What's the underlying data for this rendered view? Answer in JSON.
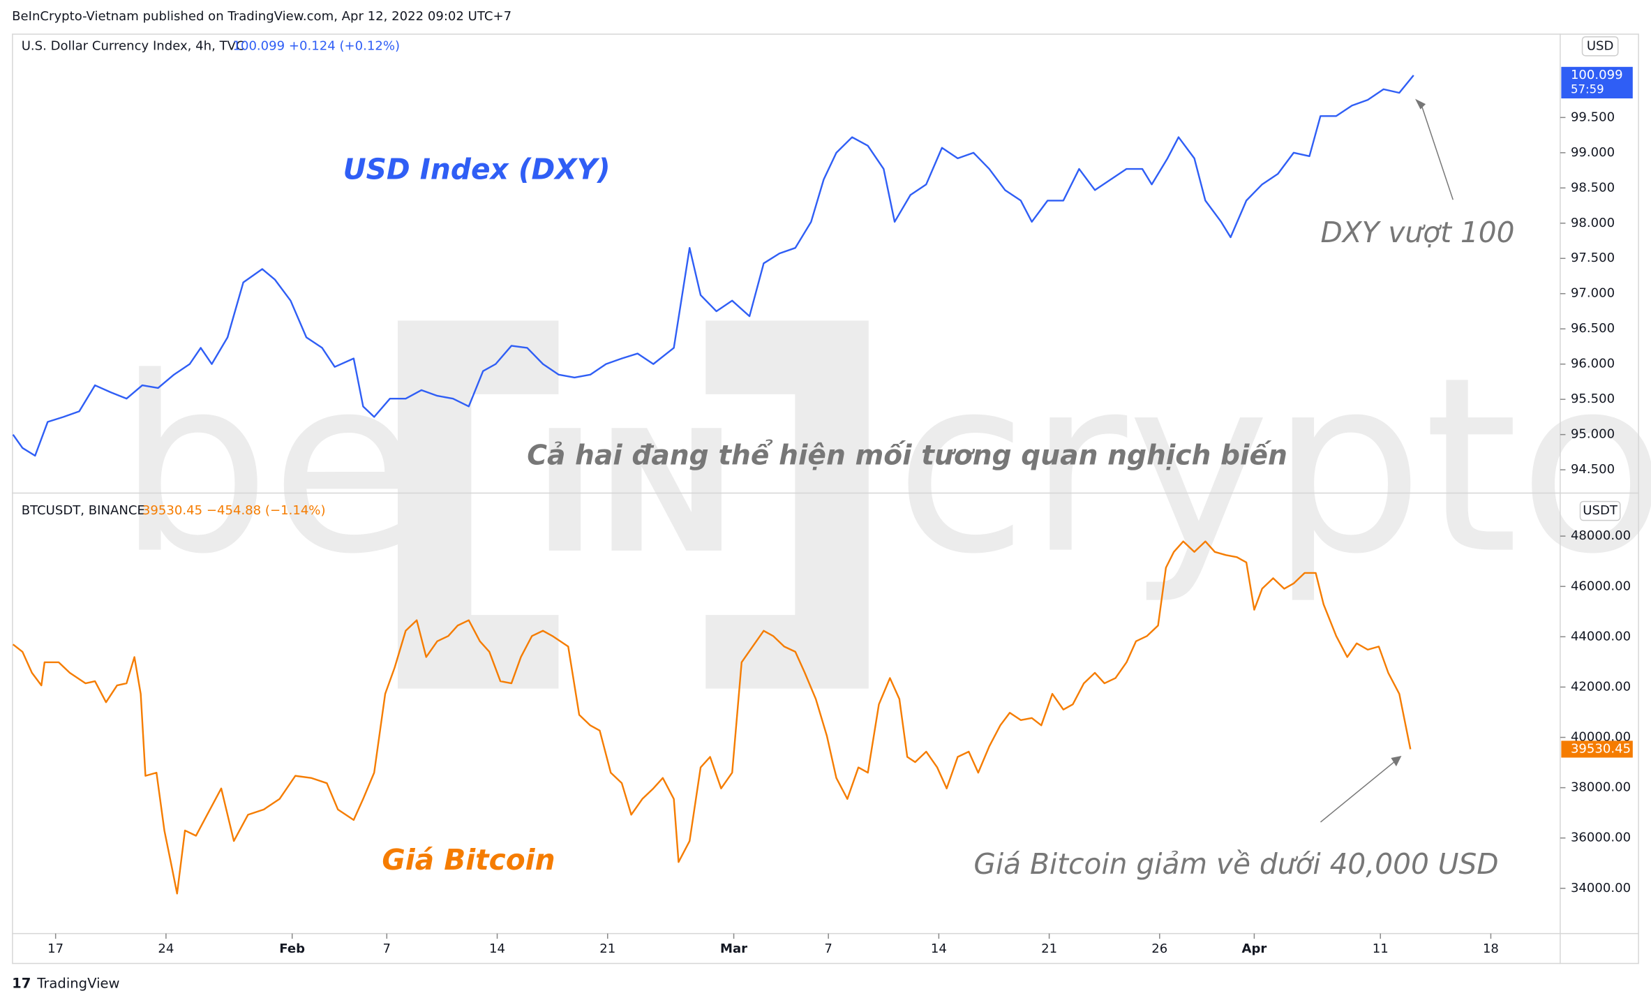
{
  "header": "BeInCrypto-Vietnam published on TradingView.com, Apr 12, 2022 09:02 UTC+7",
  "watermark": [
    "be",
    "IN",
    "crypto"
  ],
  "footer": "TradingView",
  "chart_data": [
    {
      "type": "line",
      "quote": "100.099  +0.124 (+0.12%)",
      "unit": "USD",
      "countdown": "57:59",
      "annotations": [
        "USD Index (DXY)",
        "DXY vượt 100",
        "Cả hai đang thể hiện mối tương quan nghịch biến"
      ],
      "xlim": [
        -2.7,
        95.4
      ],
      "ylim": [
        94.17,
        100.69
      ],
      "yticks": [
        {
          "value": 94.5,
          "label": "94.500"
        },
        {
          "value": 95,
          "label": "95.000"
        },
        {
          "value": 95.5,
          "label": "95.500"
        },
        {
          "value": 96,
          "label": "96.000"
        },
        {
          "value": 96.5,
          "label": "96.500"
        },
        {
          "value": 97,
          "label": "97.000"
        },
        {
          "value": 97.5,
          "label": "97.500"
        },
        {
          "value": 98,
          "label": "98.000"
        },
        {
          "value": 98.5,
          "label": "98.500"
        },
        {
          "value": 99,
          "label": "99.000"
        },
        {
          "value": 99.5,
          "label": "99.500"
        }
      ],
      "x": [
        -2.7,
        -2.1,
        -1.3,
        -0.5,
        0.5,
        1.5,
        2.5,
        3.5,
        4.5,
        5.5,
        6.5,
        7.5,
        8.5,
        9.2,
        9.9,
        10.9,
        11.9,
        13.1,
        13.9,
        14.9,
        15.9,
        16.9,
        17.7,
        18.9,
        19.5,
        20.2,
        21.2,
        22.2,
        23.2,
        24.2,
        25.2,
        26.2,
        27.1,
        27.9,
        28.9,
        29.9,
        30.9,
        31.9,
        32.9,
        33.9,
        34.9,
        35.9,
        36.9,
        37.9,
        39.2,
        40.2,
        40.9,
        41.9,
        42.9,
        44.0,
        44.9,
        45.9,
        46.9,
        47.9,
        48.7,
        49.5,
        50.5,
        51.5,
        52.5,
        53.2,
        54.2,
        55.2,
        56.2,
        57.2,
        58.2,
        59.2,
        60.2,
        61.2,
        61.9,
        62.9,
        63.9,
        64.9,
        65.9,
        66.9,
        67.9,
        68.9,
        69.5,
        70.5,
        71.2,
        72.2,
        72.9,
        73.9,
        74.5,
        75.5,
        76.5,
        77.5,
        78.5,
        79.5,
        80.2,
        81.2,
        82.2,
        83.2,
        84.2,
        85.2,
        86.1
      ],
      "series": [
        {
          "name": "U.S. Dollar Currency Index, 4h, TVC",
          "color": "#2f5ef5",
          "values": [
            95.0,
            94.81,
            94.7,
            95.18,
            95.25,
            95.33,
            95.7,
            95.6,
            95.51,
            95.7,
            95.66,
            95.85,
            96.0,
            96.23,
            96.0,
            96.38,
            97.16,
            97.35,
            97.2,
            96.9,
            96.38,
            96.23,
            95.96,
            96.08,
            95.4,
            95.25,
            95.51,
            95.51,
            95.63,
            95.55,
            95.51,
            95.4,
            95.9,
            96.0,
            96.26,
            96.23,
            96.0,
            95.85,
            95.81,
            95.85,
            96.0,
            96.08,
            96.15,
            96.0,
            96.23,
            97.65,
            96.98,
            96.75,
            96.9,
            96.68,
            97.43,
            97.57,
            97.65,
            98.02,
            98.62,
            99.0,
            99.22,
            99.1,
            98.77,
            98.02,
            98.4,
            98.55,
            99.07,
            98.92,
            99.0,
            98.77,
            98.47,
            98.32,
            98.02,
            98.32,
            98.32,
            98.77,
            98.47,
            98.62,
            98.77,
            98.77,
            98.55,
            98.92,
            99.22,
            98.92,
            98.32,
            98.02,
            97.8,
            98.32,
            98.55,
            98.7,
            99.0,
            98.95,
            99.52,
            99.52,
            99.67,
            99.75,
            99.9,
            99.85,
            100.099
          ]
        }
      ]
    },
    {
      "type": "line",
      "quote": "39530.45  −454.88 (−1.14%)",
      "unit": "USDT",
      "annotations": [
        "Giá Bitcoin",
        "Giá Bitcoin giảm về dưới 40,000 USD"
      ],
      "xlim": [
        -2.7,
        95.4
      ],
      "xticks": [
        {
          "value": 0,
          "label": "17"
        },
        {
          "value": 7,
          "label": "24"
        },
        {
          "value": 15,
          "label": "Feb"
        },
        {
          "value": 21,
          "label": "7"
        },
        {
          "value": 28,
          "label": "14"
        },
        {
          "value": 35,
          "label": "21"
        },
        {
          "value": 43,
          "label": "Mar"
        },
        {
          "value": 49,
          "label": "7"
        },
        {
          "value": 56,
          "label": "14"
        },
        {
          "value": 63,
          "label": "21"
        },
        {
          "value": 70,
          "label": "26"
        },
        {
          "value": 76,
          "label": "Apr"
        },
        {
          "value": 84,
          "label": "11"
        },
        {
          "value": 91,
          "label": "18"
        }
      ],
      "ylim": [
        32203,
        49671
      ],
      "yticks": [
        {
          "value": 34000,
          "label": "34000.00"
        },
        {
          "value": 36000,
          "label": "36000.00"
        },
        {
          "value": 38000,
          "label": "38000.00"
        },
        {
          "value": 40000,
          "label": "40000.00"
        },
        {
          "value": 42000,
          "label": "42000.00"
        },
        {
          "value": 44000,
          "label": "44000.00"
        },
        {
          "value": 46000,
          "label": "46000.00"
        },
        {
          "value": 48000,
          "label": "48000.00"
        }
      ],
      "x": [
        -2.7,
        -2.1,
        -1.5,
        -0.9,
        -0.7,
        0.2,
        0.9,
        1.9,
        2.5,
        3.2,
        3.9,
        4.5,
        5.0,
        5.4,
        5.7,
        6.4,
        6.9,
        7.3,
        7.7,
        8.2,
        8.9,
        9.5,
        10.5,
        11.3,
        12.2,
        13.2,
        14.2,
        15.2,
        16.2,
        17.2,
        17.9,
        18.9,
        19.5,
        20.2,
        20.9,
        21.5,
        22.2,
        22.9,
        23.5,
        24.2,
        24.9,
        25.5,
        26.2,
        26.9,
        27.5,
        28.2,
        28.9,
        29.5,
        30.2,
        30.9,
        31.5,
        32.5,
        33.2,
        33.9,
        34.5,
        35.2,
        35.9,
        36.5,
        37.2,
        37.9,
        38.5,
        39.2,
        39.5,
        40.2,
        40.9,
        41.5,
        42.2,
        42.9,
        43.5,
        44.2,
        44.9,
        45.5,
        46.2,
        46.9,
        47.5,
        48.2,
        48.9,
        49.5,
        50.2,
        50.9,
        51.5,
        52.2,
        52.9,
        53.5,
        54.0,
        54.5,
        55.2,
        55.9,
        56.5,
        57.2,
        57.9,
        58.5,
        59.2,
        59.9,
        60.5,
        61.2,
        61.9,
        62.5,
        63.2,
        63.9,
        64.5,
        65.2,
        65.9,
        66.5,
        67.2,
        67.9,
        68.5,
        69.2,
        69.9,
        70.4,
        70.9,
        71.5,
        72.2,
        72.9,
        73.5,
        74.2,
        74.9,
        75.5,
        76.0,
        76.5,
        77.2,
        77.9,
        78.5,
        79.2,
        79.9,
        80.4,
        81.2,
        81.9,
        82.5,
        83.2,
        83.9,
        84.5,
        85.2,
        85.9
      ],
      "series": [
        {
          "name": "BTCUSDT, BINANCE",
          "color": "#f57c00",
          "values": [
            43696,
            43403,
            42567,
            42066,
            42985,
            42985,
            42567,
            42149,
            42233,
            41397,
            42066,
            42149,
            43194,
            41731,
            38472,
            38597,
            36299,
            35045,
            33791,
            36299,
            36090,
            36800,
            37970,
            35881,
            36926,
            37135,
            37552,
            38472,
            38388,
            38179,
            37135,
            36717,
            37552,
            38597,
            41731,
            42776,
            44239,
            44657,
            43194,
            43821,
            44030,
            44448,
            44657,
            43821,
            43403,
            42233,
            42149,
            43194,
            44030,
            44239,
            44030,
            43612,
            40896,
            40478,
            40269,
            38597,
            38179,
            36926,
            37552,
            37970,
            38388,
            37552,
            35045,
            35881,
            38806,
            39224,
            37970,
            38597,
            42985,
            43612,
            44239,
            44030,
            43612,
            43403,
            42567,
            41523,
            40060,
            38388,
            37552,
            38806,
            38597,
            41314,
            42358,
            41523,
            39224,
            39015,
            39433,
            38806,
            37970,
            39224,
            39433,
            38597,
            39642,
            40478,
            40979,
            40687,
            40770,
            40478,
            41731,
            41105,
            41314,
            42149,
            42567,
            42149,
            42358,
            42985,
            43821,
            44030,
            44448,
            46746,
            47373,
            47791,
            47373,
            47791,
            47373,
            47248,
            47164,
            46955,
            45075,
            45910,
            46328,
            45910,
            46119,
            46537,
            46537,
            45284,
            44030,
            43194,
            43737,
            43487,
            43612,
            42567,
            41731,
            39530.45
          ]
        }
      ]
    }
  ]
}
